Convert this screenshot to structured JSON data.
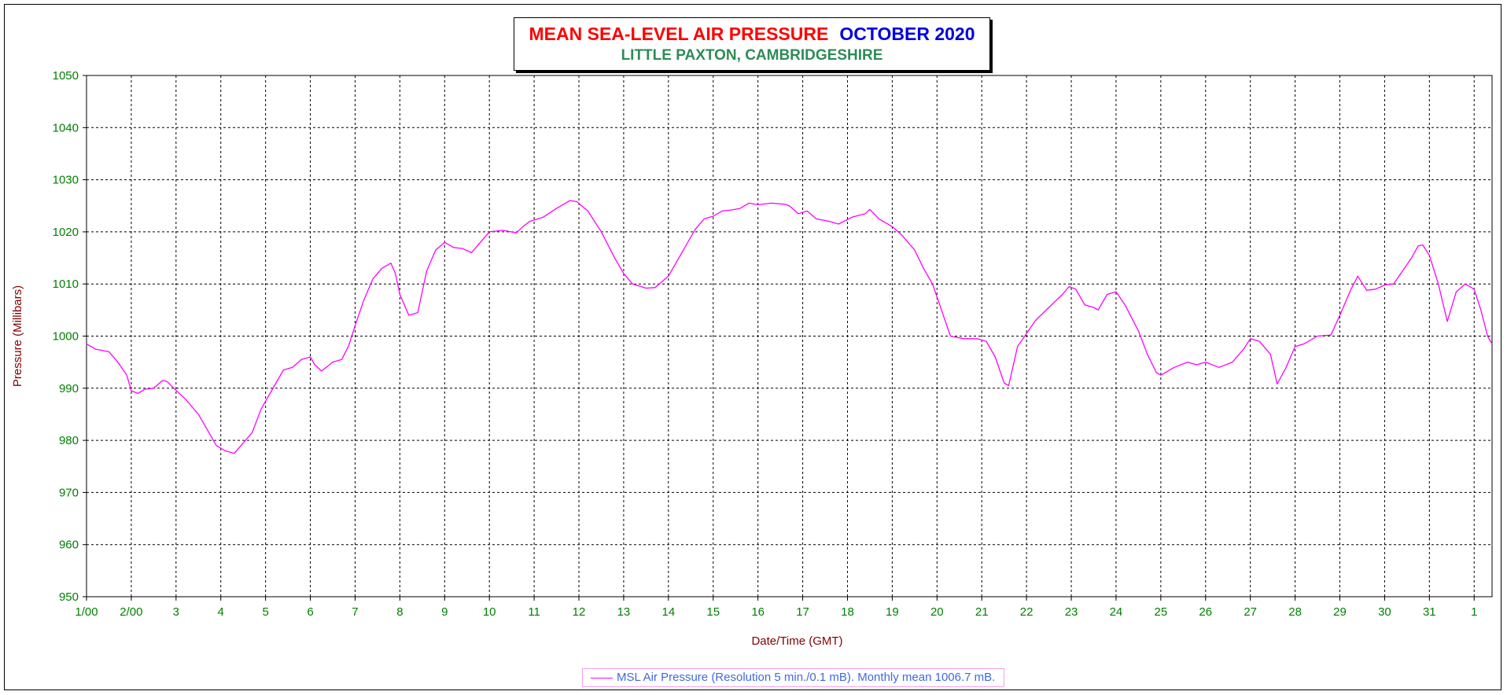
{
  "colors": {
    "series": "#ff00ff",
    "title_main": "#ff0000",
    "title_month": "#0000e0",
    "subtitle": "#2e8b57",
    "tick_labels": "#008000",
    "axis_titles": "#800000",
    "legend_text": "#4169e1",
    "grid": "#000000"
  },
  "chart_data": {
    "type": "line",
    "title": "MEAN SEA-LEVEL AIR PRESSURE",
    "title_month": "OCTOBER 2020",
    "subtitle": "LITTLE PAXTON, CAMBRIDGESHIRE",
    "xlabel": "Date/Time (GMT)",
    "ylabel": "Pressure (Millibars)",
    "ylim": [
      950,
      1050
    ],
    "yticks": [
      1050,
      1040,
      1030,
      1020,
      1010,
      1000,
      990,
      980,
      970,
      960,
      950
    ],
    "xlim": [
      1,
      32.4
    ],
    "xticks": [
      {
        "x": 1,
        "label": "1/00"
      },
      {
        "x": 2,
        "label": "2/00"
      },
      {
        "x": 3,
        "label": "3"
      },
      {
        "x": 4,
        "label": "4"
      },
      {
        "x": 5,
        "label": "5"
      },
      {
        "x": 6,
        "label": "6"
      },
      {
        "x": 7,
        "label": "7"
      },
      {
        "x": 8,
        "label": "8"
      },
      {
        "x": 9,
        "label": "9"
      },
      {
        "x": 10,
        "label": "10"
      },
      {
        "x": 11,
        "label": "11"
      },
      {
        "x": 12,
        "label": "12"
      },
      {
        "x": 13,
        "label": "13"
      },
      {
        "x": 14,
        "label": "14"
      },
      {
        "x": 15,
        "label": "15"
      },
      {
        "x": 16,
        "label": "16"
      },
      {
        "x": 17,
        "label": "17"
      },
      {
        "x": 18,
        "label": "18"
      },
      {
        "x": 19,
        "label": "19"
      },
      {
        "x": 20,
        "label": "20"
      },
      {
        "x": 21,
        "label": "21"
      },
      {
        "x": 22,
        "label": "22"
      },
      {
        "x": 23,
        "label": "23"
      },
      {
        "x": 24,
        "label": "24"
      },
      {
        "x": 25,
        "label": "25"
      },
      {
        "x": 26,
        "label": "26"
      },
      {
        "x": 27,
        "label": "27"
      },
      {
        "x": 28,
        "label": "28"
      },
      {
        "x": 29,
        "label": "29"
      },
      {
        "x": 30,
        "label": "30"
      },
      {
        "x": 31,
        "label": "31"
      },
      {
        "x": 32,
        "label": "1"
      }
    ],
    "grid": true,
    "legend_position": "bottom-center",
    "legend_text": "MSL Air Pressure (Resolution 5 min./0.1 mB). Monthly mean 1006.7 mB.",
    "series": [
      {
        "name": "MSL Air Pressure",
        "x": [
          1.0,
          1.2,
          1.5,
          1.7,
          1.9,
          2.0,
          2.15,
          2.3,
          2.5,
          2.7,
          2.8,
          2.95,
          3.2,
          3.5,
          3.7,
          3.9,
          4.1,
          4.3,
          4.5,
          4.7,
          4.9,
          5.2,
          5.4,
          5.6,
          5.8,
          6.0,
          6.1,
          6.25,
          6.4,
          6.5,
          6.7,
          6.85,
          7.0,
          7.2,
          7.4,
          7.6,
          7.8,
          7.9,
          8.0,
          8.2,
          8.4,
          8.6,
          8.8,
          9.0,
          9.2,
          9.4,
          9.6,
          9.8,
          10.0,
          10.3,
          10.6,
          10.75,
          10.9,
          11.2,
          11.5,
          11.7,
          11.8,
          11.95,
          12.2,
          12.5,
          12.8,
          13.0,
          13.2,
          13.5,
          13.7,
          14.0,
          14.3,
          14.6,
          14.8,
          15.0,
          15.2,
          15.4,
          15.6,
          15.8,
          16.0,
          16.3,
          16.6,
          16.7,
          16.9,
          17.1,
          17.3,
          17.6,
          17.8,
          18.1,
          18.4,
          18.5,
          18.7,
          19.0,
          19.2,
          19.5,
          19.7,
          19.9,
          20.1,
          20.3,
          20.6,
          20.9,
          21.1,
          21.3,
          21.5,
          21.6,
          21.8,
          22.0,
          22.2,
          22.5,
          22.8,
          22.95,
          23.1,
          23.3,
          23.5,
          23.6,
          23.8,
          24.0,
          24.2,
          24.5,
          24.7,
          24.9,
          25.0,
          25.3,
          25.6,
          25.8,
          26.0,
          26.3,
          26.6,
          26.85,
          27.0,
          27.2,
          27.45,
          27.6,
          27.8,
          28.0,
          28.2,
          28.5,
          28.8,
          29.0,
          29.25,
          29.4,
          29.6,
          29.8,
          30.0,
          30.2,
          30.4,
          30.6,
          30.75,
          30.85,
          31.0,
          31.2,
          31.4,
          31.6,
          31.8,
          32.0,
          32.15,
          32.3,
          32.4
        ],
        "y": [
          998.5,
          997.5,
          997.0,
          995.0,
          992.5,
          989.5,
          989.0,
          989.8,
          990.0,
          991.5,
          991.3,
          990.0,
          988.0,
          985.0,
          982.0,
          979.0,
          978.0,
          977.5,
          979.5,
          981.5,
          986.0,
          990.5,
          993.5,
          994.0,
          995.5,
          996.0,
          994.5,
          993.3,
          994.3,
          995.0,
          995.5,
          998.0,
          1002.0,
          1007.0,
          1011.0,
          1013.0,
          1014.0,
          1012.0,
          1008.0,
          1004.0,
          1004.5,
          1012.5,
          1016.5,
          1018.0,
          1017.0,
          1016.8,
          1016.0,
          1018.0,
          1020.0,
          1020.3,
          1019.8,
          1021.0,
          1022.0,
          1022.8,
          1024.5,
          1025.5,
          1026.0,
          1025.8,
          1024.0,
          1020.0,
          1015.0,
          1012.0,
          1010.0,
          1009.2,
          1009.3,
          1011.5,
          1016.0,
          1020.5,
          1022.5,
          1023.0,
          1024.0,
          1024.2,
          1024.5,
          1025.5,
          1025.2,
          1025.5,
          1025.3,
          1025.0,
          1023.5,
          1024.0,
          1022.5,
          1022.0,
          1021.5,
          1022.8,
          1023.5,
          1024.3,
          1022.5,
          1021.0,
          1019.5,
          1016.5,
          1013.0,
          1010.0,
          1005.0,
          1000.0,
          999.5,
          999.5,
          999.0,
          996.0,
          991.0,
          990.5,
          998.0,
          1000.5,
          1003.0,
          1005.5,
          1008.0,
          1009.5,
          1009.0,
          1006.0,
          1005.5,
          1005.0,
          1008.0,
          1008.5,
          1006.0,
          1001.0,
          996.5,
          993.0,
          992.5,
          994.0,
          995.0,
          994.5,
          995.0,
          994.0,
          995.0,
          997.5,
          999.5,
          999.0,
          996.5,
          990.8,
          994.0,
          998.0,
          998.5,
          1000.0,
          1000.2,
          1004.0,
          1009.0,
          1011.5,
          1008.8,
          1009.0,
          1009.8,
          1010.0,
          1012.5,
          1015.0,
          1017.3,
          1017.5,
          1015.5,
          1010.0,
          1002.8,
          1008.5,
          1010.0,
          1009.0,
          1005.0,
          1000.0,
          998.5
        ]
      }
    ]
  }
}
